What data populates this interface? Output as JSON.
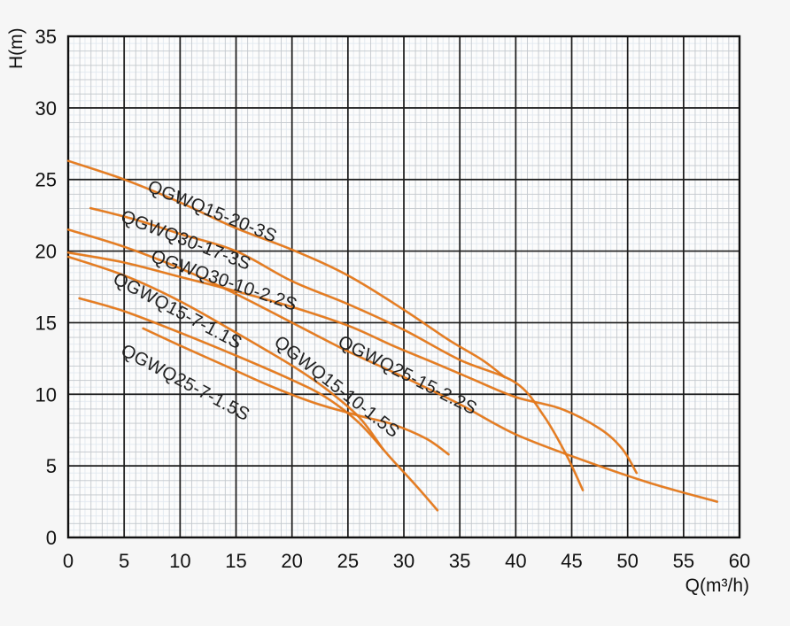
{
  "chart_data": {
    "type": "line",
    "title": "",
    "xlabel": "Q(m³/h)",
    "ylabel": "H(m)",
    "xlim": [
      0,
      60
    ],
    "ylim": [
      0,
      35
    ],
    "xticks": [
      0,
      5,
      10,
      15,
      20,
      25,
      30,
      35,
      40,
      45,
      50,
      55,
      60
    ],
    "yticks": [
      0,
      5,
      10,
      15,
      20,
      25,
      30,
      35
    ],
    "grid": "on",
    "legend_position": "labels-along-curves",
    "colors": {
      "curve": "#e87a1a",
      "curve_core": "#c05f12",
      "grid_major": "#1c1c1c",
      "grid_minor": "#c3c8cd",
      "grid_fine": "#e2e9f0",
      "plot_background": "#fcfcfc",
      "page_background": "#f6f6f6",
      "text": "#111111"
    },
    "series": [
      {
        "name": "QGWQ15-20-3S",
        "points": [
          [
            0,
            26.3
          ],
          [
            5,
            25.0
          ],
          [
            10,
            23.4
          ],
          [
            15,
            21.6
          ],
          [
            20,
            20.1
          ],
          [
            25,
            18.3
          ],
          [
            30,
            15.9
          ],
          [
            34,
            13.8
          ],
          [
            37,
            12.4
          ],
          [
            39,
            11.2
          ]
        ],
        "label": {
          "q": 7.0,
          "h": 24.2,
          "angle": 22
        }
      },
      {
        "name": "QGWQ30-17-3S",
        "points": [
          [
            2,
            23.0
          ],
          [
            6,
            22.2
          ],
          [
            10,
            21.2
          ],
          [
            15,
            20.0
          ],
          [
            20,
            17.9
          ],
          [
            25,
            16.3
          ],
          [
            30,
            14.5
          ],
          [
            35,
            12.4
          ],
          [
            40,
            10.8
          ],
          [
            42.5,
            8.5
          ],
          [
            44.5,
            5.8
          ],
          [
            46,
            3.3
          ]
        ],
        "label": {
          "q": 4.6,
          "h": 22.1,
          "angle": 21
        }
      },
      {
        "name": "QGWQ30-10-2.2S",
        "points": [
          [
            0,
            21.5
          ],
          [
            5,
            20.3
          ],
          [
            10,
            18.8
          ],
          [
            15,
            17.0
          ],
          [
            20,
            15.0
          ],
          [
            25,
            13.0
          ],
          [
            30,
            11.2
          ],
          [
            35,
            9.3
          ],
          [
            40,
            7.2
          ],
          [
            46,
            5.4
          ],
          [
            52,
            3.8
          ],
          [
            58,
            2.5
          ]
        ],
        "label": {
          "q": 7.3,
          "h": 19.3,
          "angle": 19
        }
      },
      {
        "name": "QGWQ25-15-2.2S",
        "points": [
          [
            0,
            19.9
          ],
          [
            5,
            19.2
          ],
          [
            10,
            18.2
          ],
          [
            15,
            17.2
          ],
          [
            20,
            16.1
          ],
          [
            25,
            14.8
          ],
          [
            29,
            13.4
          ],
          [
            33,
            12.1
          ],
          [
            36,
            11.1
          ],
          [
            40,
            9.8
          ],
          [
            44,
            9.0
          ],
          [
            47.5,
            7.6
          ],
          [
            49.5,
            6.2
          ],
          [
            50.8,
            4.5
          ]
        ],
        "label": {
          "q": 24.0,
          "h": 13.4,
          "angle": 27
        }
      },
      {
        "name": "QGWQ15-10-1.5S",
        "points": [
          [
            1,
            16.7
          ],
          [
            5,
            15.8
          ],
          [
            10,
            14.3
          ],
          [
            15,
            12.7
          ],
          [
            20,
            11.0
          ],
          [
            23,
            9.8
          ],
          [
            26,
            8.0
          ],
          [
            29,
            5.4
          ],
          [
            31,
            3.7
          ],
          [
            33,
            1.9
          ]
        ],
        "label": {
          "q": 18.3,
          "h": 13.5,
          "angle": 38
        }
      },
      {
        "name": "QGWQ15-7-1.1S",
        "points": [
          [
            0,
            19.6
          ],
          [
            5,
            18.3
          ],
          [
            10,
            16.5
          ],
          [
            15,
            14.3
          ],
          [
            20,
            12.0
          ],
          [
            23,
            10.4
          ],
          [
            26,
            8.4
          ],
          [
            28.1,
            6.2
          ]
        ],
        "label": {
          "q": 3.9,
          "h": 17.8,
          "angle": 28
        }
      },
      {
        "name": "QGWQ25-7-1.5S",
        "points": [
          [
            6.7,
            14.6
          ],
          [
            10,
            13.4
          ],
          [
            14,
            12.0
          ],
          [
            18,
            10.6
          ],
          [
            22,
            9.4
          ],
          [
            26,
            8.5
          ],
          [
            29,
            7.9
          ],
          [
            32,
            6.9
          ],
          [
            34,
            5.8
          ]
        ],
        "label": {
          "q": 4.6,
          "h": 12.8,
          "angle": 28
        }
      }
    ]
  }
}
